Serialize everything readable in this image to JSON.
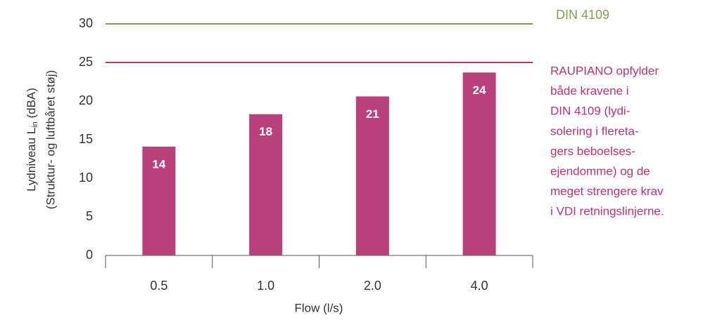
{
  "chart_data": {
    "type": "bar",
    "categories": [
      "0.5",
      "1.0",
      "2.0",
      "4.0"
    ],
    "values": [
      14.1,
      18.3,
      20.6,
      23.7
    ],
    "value_labels": [
      "14",
      "18",
      "21",
      "24"
    ],
    "color": "#b9417b",
    "ylim": [
      0,
      30
    ],
    "yticks": [
      0,
      5,
      10,
      15,
      20,
      25,
      30
    ],
    "grid": false,
    "xlabel": "Flow (l/s)",
    "ylabel": {
      "main": "Lydniveau L",
      "sub": "in",
      "unit": " (dBA)",
      "line2": "(Struktur- og luftbåret støj)"
    },
    "reference_lines": [
      {
        "value": 30,
        "color": "#7aa54a",
        "label": "DIN 4109"
      },
      {
        "value": 25,
        "color": "#c2306f"
      }
    ],
    "annotation": {
      "color": "#c2306f",
      "lines": [
        "RAUPIANO opfylder",
        "både kravene i",
        "DIN 4109 (lydi-",
        "solering i flereta-",
        "gers beboelses-",
        "ejendomme) og de",
        "meget strengere krav",
        "i VDI retningslinjerne."
      ]
    }
  }
}
